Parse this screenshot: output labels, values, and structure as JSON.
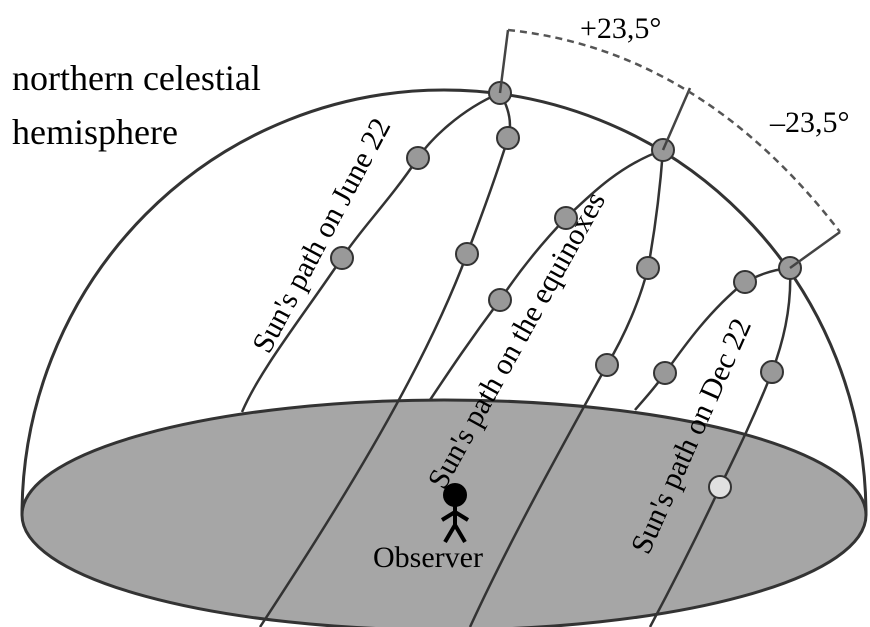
{
  "title": {
    "line1": "northern celestial",
    "line2": "hemisphere"
  },
  "angles": {
    "plus": "+23,5°",
    "minus": "–23,5°"
  },
  "paths": {
    "june": "Sun's path on June 22",
    "equinox": "Sun's path on the equinoxes",
    "dec": "Sun's path on Dec 22"
  },
  "observer": "Observer"
}
